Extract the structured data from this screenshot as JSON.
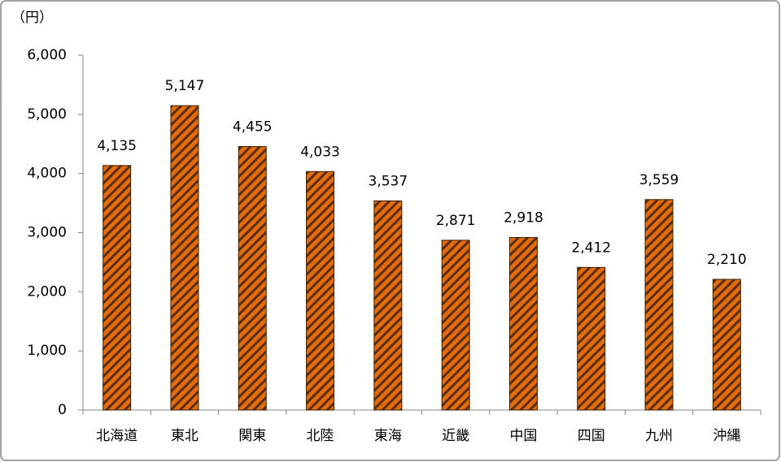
{
  "chart_data": {
    "type": "bar",
    "y_axis_label": "（円）",
    "categories": [
      "北海道",
      "東北",
      "関東",
      "北陸",
      "東海",
      "近畿",
      "中国",
      "四国",
      "九州",
      "沖縄"
    ],
    "values": [
      4135,
      5147,
      4455,
      4033,
      3537,
      2871,
      2918,
      2412,
      3559,
      2210
    ],
    "value_labels": [
      "4,135",
      "5,147",
      "4,455",
      "4,033",
      "3,537",
      "2,871",
      "2,918",
      "2,412",
      "3,559",
      "2,210"
    ],
    "color": "#e46c0a",
    "ylim": [
      0,
      6000
    ],
    "yticks": [
      0,
      {
        "value": 1000,
        "label": "1,000"
      },
      {
        "value": 2000,
        "label": "2,000"
      },
      {
        "value": 3000,
        "label": "3,000"
      },
      {
        "value": 4000,
        "label": "4,000"
      },
      {
        "value": 5000,
        "label": "5,000"
      },
      {
        "value": 6000,
        "label": "6,000"
      }
    ],
    "grid": false
  }
}
